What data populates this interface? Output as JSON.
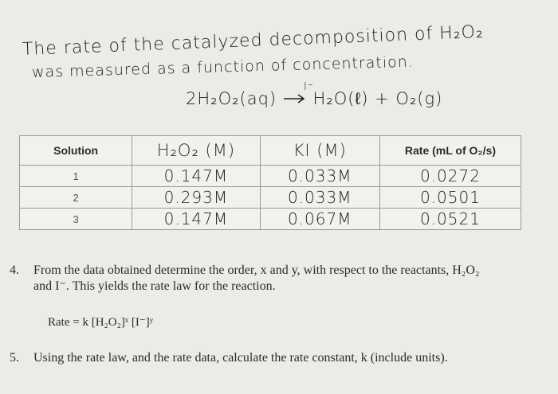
{
  "handwriting": {
    "line1": "The rate of the catalyzed decomposition of H₂O₂",
    "line2": "was measured as a function of concentration.",
    "equation_left": "2H₂O₂(aq)",
    "equation_catalyst": "I⁻",
    "equation_right": "H₂O(ℓ) + O₂(g)"
  },
  "table": {
    "headers": [
      "Solution",
      "H₂O₂ (M)",
      "KI (M)",
      "Rate (mL of O₂/s)"
    ],
    "rows": [
      [
        "1",
        "0.147M",
        "0.033M",
        "0.0272"
      ],
      [
        "2",
        "0.293M",
        "0.033M",
        "0.0501"
      ],
      [
        "3",
        "0.147M",
        "0.067M",
        "0.0521"
      ]
    ]
  },
  "questions": {
    "q4_number": "4.",
    "q4_line1": "From the data obtained determine the order, x and y, with respect to the reactants, H₂O₂",
    "q4_line2": "and I⁻. This yields the rate law for the reaction.",
    "rate_law": "Rate = k [H₂O₂]ˣ [I⁻]ʸ",
    "q5_number": "5.",
    "q5_text": "Using the rate law, and the rate data, calculate the rate constant, k (include units)."
  }
}
